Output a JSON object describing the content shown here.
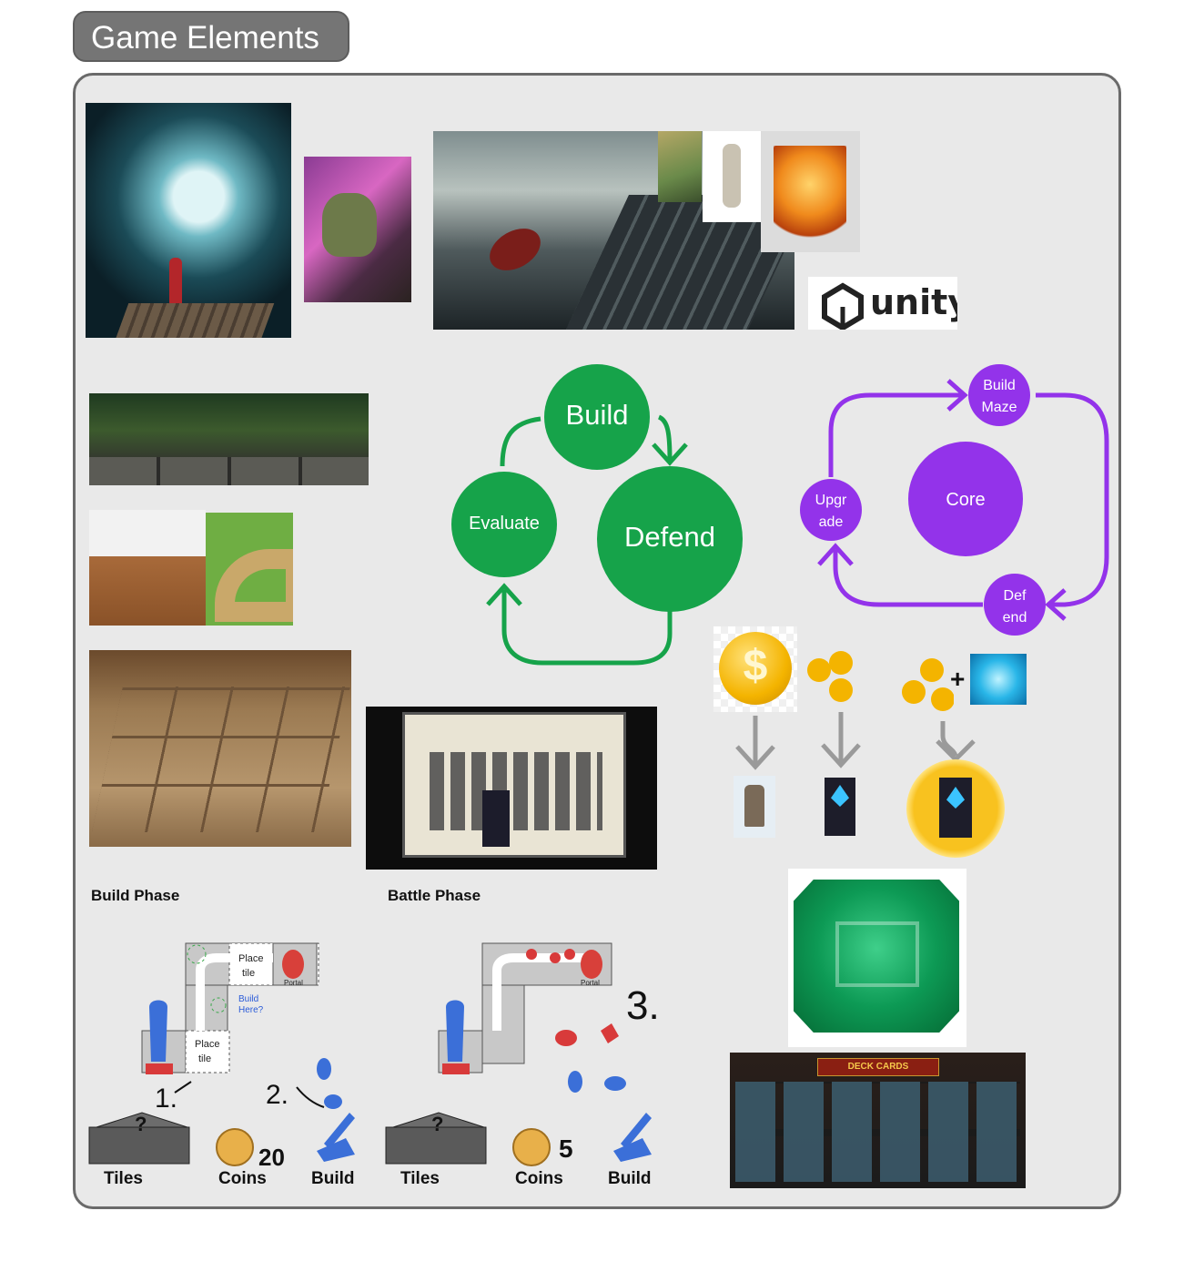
{
  "header": {
    "title": "Game Elements"
  },
  "cycle": {
    "build": "Build",
    "defend": "Defend",
    "evaluate": "Evaluate"
  },
  "core_loop": {
    "core": "Core",
    "build_maze_l1": "Build",
    "build_maze_l2": "Maze",
    "upgrade_l1": "Upgr",
    "upgrade_l2": "ade",
    "defend_l1": "Def",
    "defend_l2": "end"
  },
  "logo": {
    "text": "unity"
  },
  "labels": {
    "build_phase": "Build Phase",
    "battle_phase": "Battle Phase"
  },
  "build_sketch": {
    "tiles": "Tiles",
    "coins": "Coins",
    "coin_count": "20",
    "build": "Build",
    "note_place_tile_1": "Place tile",
    "note_build_here": "Build Here?",
    "note_place_tile_2": "Place tile",
    "note_portal": "Portal",
    "step1": "1.",
    "step2": "2."
  },
  "battle_sketch": {
    "tiles": "Tiles",
    "coins": "Coins",
    "coin_count": "5",
    "build": "Build",
    "note_portal": "Portal",
    "step3": "3."
  },
  "deck": {
    "title": "DECK CARDS"
  },
  "colors": {
    "green": "#16a34a",
    "purple": "#9333ea",
    "gold": "#f4b400"
  }
}
